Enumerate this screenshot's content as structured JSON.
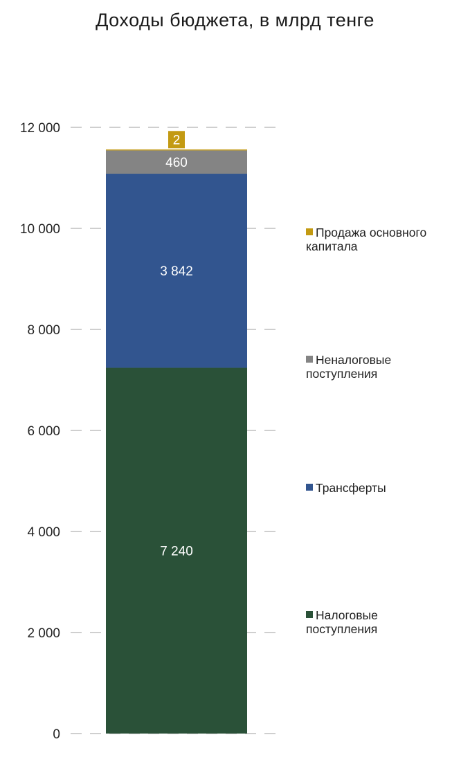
{
  "chart_data": {
    "type": "bar",
    "stacked": true,
    "title": "Доходы бюджета, в млрд тенге",
    "xlabel": "",
    "ylabel": "",
    "ylim": [
      0,
      12000
    ],
    "yticks": [
      0,
      2000,
      4000,
      6000,
      8000,
      10000,
      12000
    ],
    "ytick_labels": [
      "0",
      "2 000",
      "4 000",
      "6 000",
      "8 000",
      "10 000",
      "12 000"
    ],
    "grid": true,
    "legend_position": "right",
    "series": [
      {
        "name": "Налоговые поступления",
        "legend_lines": [
          "Налоговые",
          "поступления"
        ],
        "value": 7240,
        "label": "7 240",
        "color": "#2a5138"
      },
      {
        "name": "Трансферты",
        "legend_lines": [
          "Трансферты"
        ],
        "value": 3842,
        "label": "3 842",
        "color": "#32558f"
      },
      {
        "name": "Неналоговые поступления",
        "legend_lines": [
          "Неналоговые",
          "поступления"
        ],
        "value": 460,
        "label": "460",
        "color": "#848484"
      },
      {
        "name": "Продажа основного капитала",
        "legend_lines": [
          "Продажа основного",
          "капитала"
        ],
        "value": 2,
        "label": "2",
        "color": "#c39a12"
      }
    ]
  }
}
